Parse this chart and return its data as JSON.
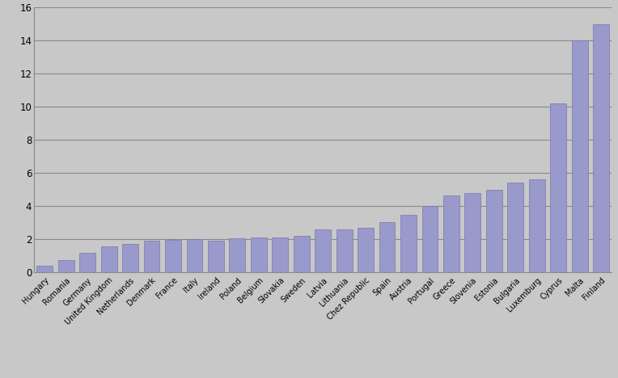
{
  "categories": [
    "Hungary",
    "Romania",
    "Germany",
    "United Kingdom",
    "Netherlands",
    "Denmark",
    "France",
    "Italy",
    "Ireland",
    "Poland",
    "Belgium",
    "Slovakia",
    "Sweden",
    "Latvia",
    "Lithuania",
    "Chez Republic",
    "Spain",
    "Austria",
    "Portugal",
    "Greece",
    "Slovenia",
    "Estonia",
    "Bulgaria",
    "Luxemburg",
    "Cyprus",
    "Malta",
    "Finland"
  ],
  "values": [
    0.4,
    0.75,
    1.15,
    1.55,
    1.7,
    1.9,
    1.95,
    2.0,
    1.9,
    2.05,
    2.1,
    2.1,
    2.2,
    2.6,
    2.6,
    2.7,
    3.05,
    3.45,
    4.0,
    4.65,
    4.8,
    5.0,
    5.4,
    5.6,
    10.2,
    14.0,
    15.0
  ],
  "bar_color": "#9999cc",
  "bar_edge_color": "#7777aa",
  "background_color": "#c8c8c8",
  "ylim": [
    0,
    16
  ],
  "yticks": [
    0,
    2,
    4,
    6,
    8,
    10,
    12,
    14,
    16
  ],
  "grid_color": "#888888",
  "grid_linewidth": 0.8,
  "label_fontsize": 7.0,
  "tick_fontsize": 8.5
}
